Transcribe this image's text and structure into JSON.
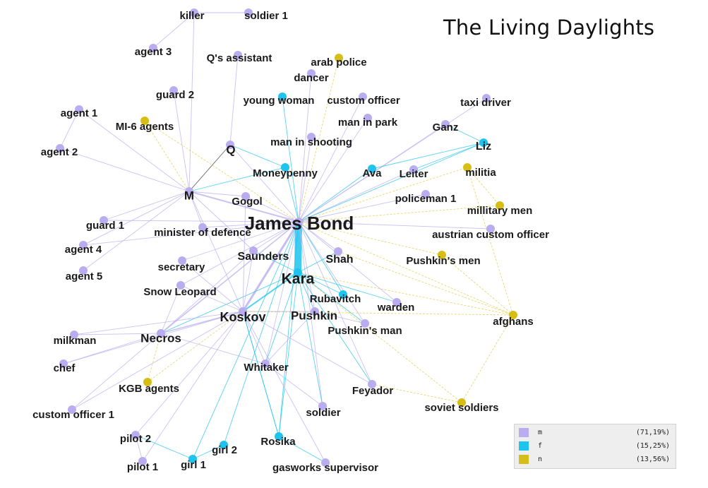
{
  "title": "The Living Daylights",
  "colors": {
    "m": "#b9adf0",
    "f": "#1ec3ee",
    "n": "#d6be16"
  },
  "legend": [
    {
      "label": "m",
      "pct": "(71,19%)",
      "color": "#b9adf0"
    },
    {
      "label": "f",
      "pct": "(15,25%)",
      "color": "#1ec3ee"
    },
    {
      "label": "n",
      "pct": "(13,56%)",
      "color": "#d6be16"
    }
  ],
  "nodes": [
    {
      "label": "killer",
      "g": "m"
    },
    {
      "label": "soldier 1",
      "g": "m"
    },
    {
      "label": "agent 3",
      "g": "m"
    },
    {
      "label": "Q's assistant",
      "g": "m"
    },
    {
      "label": "arab police",
      "g": "n"
    },
    {
      "label": "dancer",
      "g": "m"
    },
    {
      "label": "guard 2",
      "g": "m"
    },
    {
      "label": "young woman",
      "g": "f"
    },
    {
      "label": "custom officer",
      "g": "m"
    },
    {
      "label": "taxi driver",
      "g": "m"
    },
    {
      "label": "agent 1",
      "g": "m"
    },
    {
      "label": "MI-6 agents",
      "g": "n"
    },
    {
      "label": "man in park",
      "g": "m"
    },
    {
      "label": "Ganz",
      "g": "m"
    },
    {
      "label": "agent 2",
      "g": "m"
    },
    {
      "label": "Q",
      "g": "m"
    },
    {
      "label": "man in shooting",
      "g": "m"
    },
    {
      "label": "Liz",
      "g": "f"
    },
    {
      "label": "Moneypenny",
      "g": "f"
    },
    {
      "label": "Ava",
      "g": "f"
    },
    {
      "label": "Leiter",
      "g": "m"
    },
    {
      "label": "militia",
      "g": "n"
    },
    {
      "label": "M",
      "g": "m"
    },
    {
      "label": "Gogol",
      "g": "m"
    },
    {
      "label": "policeman 1",
      "g": "m"
    },
    {
      "label": "James Bond",
      "g": "m"
    },
    {
      "label": "millitary men",
      "g": "n"
    },
    {
      "label": "guard 1",
      "g": "m"
    },
    {
      "label": "minister of defence",
      "g": "m"
    },
    {
      "label": "austrian custom officer",
      "g": "m"
    },
    {
      "label": "agent 4",
      "g": "m"
    },
    {
      "label": "Saunders",
      "g": "m"
    },
    {
      "label": "Shah",
      "g": "m"
    },
    {
      "label": "Pushkin's men",
      "g": "n"
    },
    {
      "label": "secretary",
      "g": "m"
    },
    {
      "label": "agent 5",
      "g": "m"
    },
    {
      "label": "Kara",
      "g": "f"
    },
    {
      "label": "Snow Leopard",
      "g": "m"
    },
    {
      "label": "Rubavitch",
      "g": "f"
    },
    {
      "label": "warden",
      "g": "m"
    },
    {
      "label": "Koskov",
      "g": "m"
    },
    {
      "label": "Pushkin",
      "g": "m"
    },
    {
      "label": "afghans",
      "g": "n"
    },
    {
      "label": "Pushkin's man",
      "g": "m"
    },
    {
      "label": "milkman",
      "g": "m"
    },
    {
      "label": "Necros",
      "g": "m"
    },
    {
      "label": "chef",
      "g": "m"
    },
    {
      "label": "Whitaker",
      "g": "m"
    },
    {
      "label": "KGB agents",
      "g": "n"
    },
    {
      "label": "Feyador",
      "g": "m"
    },
    {
      "label": "custom officer 1",
      "g": "m"
    },
    {
      "label": "soldier",
      "g": "m"
    },
    {
      "label": "soviet soldiers",
      "g": "n"
    },
    {
      "label": "pilot 2",
      "g": "m"
    },
    {
      "label": "girl 2",
      "g": "f"
    },
    {
      "label": "Rosika",
      "g": "f"
    },
    {
      "label": "pilot 1",
      "g": "m"
    },
    {
      "label": "girl 1",
      "g": "f"
    },
    {
      "label": "gasworks supervisor",
      "g": "m"
    }
  ],
  "edges": [
    [
      "killer",
      "soldier 1"
    ],
    [
      "killer",
      "agent 3"
    ],
    [
      "killer",
      "M"
    ],
    [
      "Q's assistant",
      "Q"
    ],
    [
      "Q",
      "Moneypenny"
    ],
    [
      "Q",
      "James Bond"
    ],
    [
      "Q",
      "M"
    ],
    [
      "M",
      "James Bond"
    ],
    [
      "M",
      "Moneypenny"
    ],
    [
      "M",
      "agent 1"
    ],
    [
      "M",
      "agent 2"
    ],
    [
      "M",
      "MI-6 agents"
    ],
    [
      "M",
      "guard 2"
    ],
    [
      "M",
      "Gogol"
    ],
    [
      "M",
      "Saunders"
    ],
    [
      "M",
      "Koskov"
    ],
    [
      "M",
      "guard 1"
    ],
    [
      "M",
      "agent 4"
    ],
    [
      "M",
      "agent 5"
    ],
    [
      "M",
      "minister of defence"
    ],
    [
      "agent 1",
      "agent 2"
    ],
    [
      "MI-6 agents",
      "James Bond"
    ],
    [
      "James Bond",
      "Kara"
    ],
    [
      "James Bond",
      "Koskov"
    ],
    [
      "James Bond",
      "Moneypenny"
    ],
    [
      "James Bond",
      "Gogol"
    ],
    [
      "James Bond",
      "Saunders"
    ],
    [
      "James Bond",
      "Shah"
    ],
    [
      "James Bond",
      "Leiter"
    ],
    [
      "James Bond",
      "Liz"
    ],
    [
      "James Bond",
      "Ava"
    ],
    [
      "James Bond",
      "militia"
    ],
    [
      "James Bond",
      "millitary men"
    ],
    [
      "James Bond",
      "policeman 1"
    ],
    [
      "James Bond",
      "austrian custom officer"
    ],
    [
      "James Bond",
      "Pushkin's men"
    ],
    [
      "James Bond",
      "young woman"
    ],
    [
      "James Bond",
      "custom officer"
    ],
    [
      "James Bond",
      "man in park"
    ],
    [
      "James Bond",
      "man in shooting"
    ],
    [
      "James Bond",
      "Ganz"
    ],
    [
      "James Bond",
      "taxi driver"
    ],
    [
      "James Bond",
      "Necros"
    ],
    [
      "James Bond",
      "Whitaker"
    ],
    [
      "James Bond",
      "Pushkin"
    ],
    [
      "James Bond",
      "Rubavitch"
    ],
    [
      "James Bond",
      "warden"
    ],
    [
      "James Bond",
      "afghans"
    ],
    [
      "James Bond",
      "Feyador"
    ],
    [
      "James Bond",
      "minister of defence"
    ],
    [
      "James Bond",
      "secretary"
    ],
    [
      "James Bond",
      "Snow Leopard"
    ],
    [
      "James Bond",
      "dancer"
    ],
    [
      "James Bond",
      "arab police"
    ],
    [
      "James Bond",
      "soldier"
    ],
    [
      "James Bond",
      "girl 1"
    ],
    [
      "James Bond",
      "girl 2"
    ],
    [
      "James Bond",
      "Rosika"
    ],
    [
      "James Bond",
      "Pushkin's man"
    ],
    [
      "James Bond",
      "guard 1"
    ],
    [
      "James Bond",
      "agent 4"
    ],
    [
      "Kara",
      "Koskov"
    ],
    [
      "Kara",
      "Shah"
    ],
    [
      "Kara",
      "Rubavitch"
    ],
    [
      "Kara",
      "Pushkin"
    ],
    [
      "Kara",
      "afghans"
    ],
    [
      "Kara",
      "Feyador"
    ],
    [
      "Kara",
      "Necros"
    ],
    [
      "Kara",
      "Whitaker"
    ],
    [
      "Kara",
      "Saunders"
    ],
    [
      "Kara",
      "soldier"
    ],
    [
      "Kara",
      "warden"
    ],
    [
      "Kara",
      "Pushkin's man"
    ],
    [
      "Kara",
      "Rosika"
    ],
    [
      "Kara",
      "soviet soldiers"
    ],
    [
      "Koskov",
      "Necros"
    ],
    [
      "Koskov",
      "Whitaker"
    ],
    [
      "Koskov",
      "Pushkin"
    ],
    [
      "Koskov",
      "Feyador"
    ],
    [
      "Koskov",
      "Snow Leopard"
    ],
    [
      "Koskov",
      "KGB agents"
    ],
    [
      "Koskov",
      "milkman"
    ],
    [
      "Koskov",
      "chef"
    ],
    [
      "Koskov",
      "custom officer 1"
    ],
    [
      "Koskov",
      "secretary"
    ],
    [
      "Koskov",
      "Gogol"
    ],
    [
      "Koskov",
      "pilot 2"
    ],
    [
      "Koskov",
      "pilot 1"
    ],
    [
      "Koskov",
      "Saunders"
    ],
    [
      "Koskov",
      "afghans"
    ],
    [
      "Koskov",
      "Rosika"
    ],
    [
      "Koskov",
      "gasworks supervisor"
    ],
    [
      "Necros",
      "milkman"
    ],
    [
      "Necros",
      "chef"
    ],
    [
      "Necros",
      "KGB agents"
    ],
    [
      "Necros",
      "custom officer 1"
    ],
    [
      "Necros",
      "Whitaker"
    ],
    [
      "Necros",
      "Saunders"
    ],
    [
      "Necros",
      "Snow Leopard"
    ],
    [
      "Rosika",
      "gasworks supervisor"
    ],
    [
      "Rosika",
      "Koskov"
    ],
    [
      "pilot 2",
      "pilot 1"
    ],
    [
      "pilot 2",
      "girl 1"
    ],
    [
      "girl 1",
      "girl 2"
    ],
    [
      "Feyador",
      "soviet soldiers"
    ],
    [
      "afghans",
      "soviet soldiers"
    ],
    [
      "afghans",
      "Pushkin's men"
    ],
    [
      "afghans",
      "militia"
    ],
    [
      "afghans",
      "Shah"
    ],
    [
      "Liz",
      "Ava"
    ],
    [
      "Liz",
      "Leiter"
    ],
    [
      "Liz",
      "Ganz"
    ],
    [
      "militia",
      "millitary men"
    ],
    [
      "Whitaker",
      "soldier"
    ],
    [
      "Pushkin",
      "Pushkin's man"
    ],
    [
      "Pushkin",
      "Whitaker"
    ]
  ]
}
